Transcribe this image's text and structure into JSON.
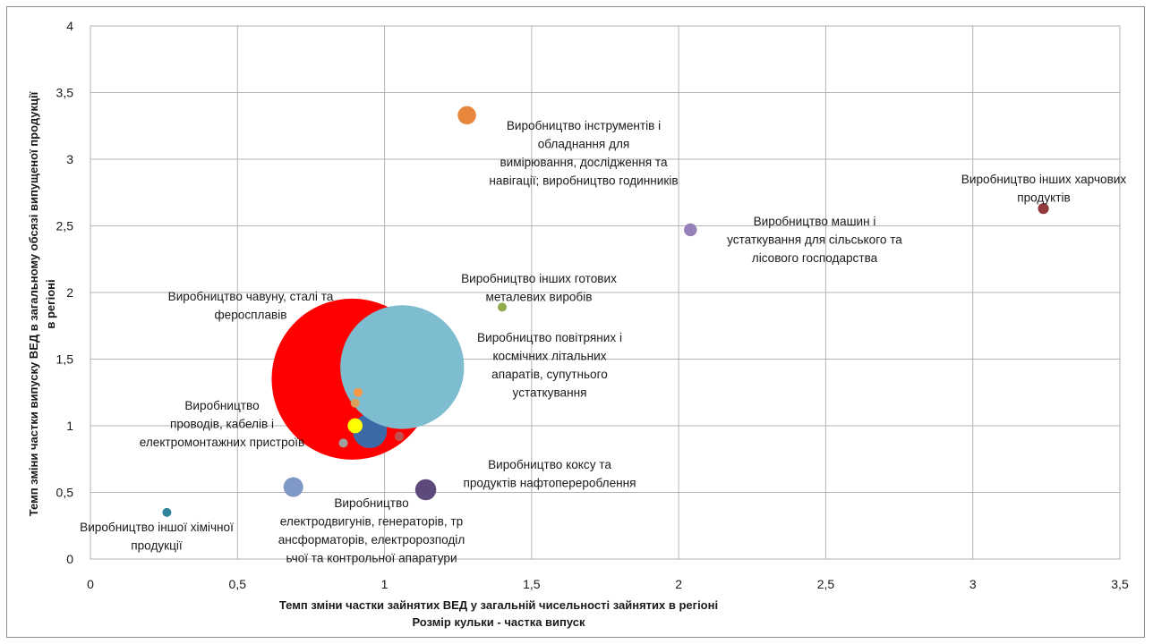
{
  "chart_data": {
    "type": "scatter",
    "subtype": "bubble",
    "xlabel": "Темп зміни частки зайнятих  ВЕД у загальній чисельності зайнятих в регіоні",
    "xlabel2": "Розмір кульки - частка випуск",
    "ylabel_line1": "Темп зміни частки випуску ВЕД в загальному обсязі випущеної продукції",
    "ylabel_line2": "в регіоні",
    "xlim": [
      0,
      3.5
    ],
    "ylim": [
      0,
      4
    ],
    "x_ticks": [
      0,
      0.5,
      1,
      1.5,
      2,
      2.5,
      3,
      3.5
    ],
    "x_tick_labels": [
      "0",
      "0,5",
      "1",
      "1,5",
      "2",
      "2,5",
      "3",
      "3,5"
    ],
    "y_ticks": [
      0,
      0.5,
      1,
      1.5,
      2,
      2.5,
      3,
      3.5,
      4
    ],
    "y_tick_labels": [
      "0",
      "0,5",
      "1",
      "1,5",
      "2",
      "2,5",
      "3",
      "3,5",
      "4"
    ],
    "grid": true,
    "points": [
      {
        "x": 0.89,
        "y": 1.35,
        "size": 100,
        "color": "#ff0000"
      },
      {
        "x": 0.95,
        "y": 0.96,
        "size": 4.5,
        "color": "#3c6aa8"
      },
      {
        "x": 1.06,
        "y": 1.44,
        "size": 59,
        "color": "#7ebcd0"
      },
      {
        "x": 1.28,
        "y": 3.33,
        "size": 1.3,
        "color": "#e8873c"
      },
      {
        "x": 2.04,
        "y": 2.47,
        "size": 0.64,
        "color": "#9580b8"
      },
      {
        "x": 3.24,
        "y": 2.63,
        "size": 0.46,
        "color": "#953a3c"
      },
      {
        "x": 1.4,
        "y": 1.89,
        "size": 0.21,
        "color": "#92aa4e"
      },
      {
        "x": 0.9,
        "y": 1.0,
        "size": 0.86,
        "color": "#ffff00"
      },
      {
        "x": 0.69,
        "y": 0.54,
        "size": 1.5,
        "color": "#7f98c6"
      },
      {
        "x": 1.14,
        "y": 0.52,
        "size": 1.7,
        "color": "#5d4a7a"
      },
      {
        "x": 0.26,
        "y": 0.35,
        "size": 0.1,
        "color": "#31849b"
      },
      {
        "x": 1.05,
        "y": 0.92,
        "size": 0.34,
        "color": "#c0504d"
      },
      {
        "x": 0.91,
        "y": 1.25,
        "size": 0.05,
        "color": "#f79646"
      },
      {
        "x": 0.9,
        "y": 1.17,
        "size": 0.08,
        "color": "#d9a05b"
      },
      {
        "x": 0.86,
        "y": 0.87,
        "size": 0.05,
        "color": "#a0a0a0"
      }
    ],
    "annotations": [
      {
        "lines": [
          "Виробництво інструментів і",
          "обладнання для",
          "вимірювання, дослідження та",
          "навігації; виробництво годинників"
        ]
      },
      {
        "lines": [
          "Виробництво інших харчових",
          "продуктів"
        ]
      },
      {
        "lines": [
          "Виробництво машин і",
          "устаткування для сільського та",
          "лісового господарства"
        ]
      },
      {
        "lines": [
          "Виробництво інших готових",
          "металевих виробів"
        ]
      },
      {
        "lines": [
          "Виробництво чавуну, сталі та",
          "феросплавів"
        ]
      },
      {
        "lines": [
          "Виробництво повітряних і",
          "космічних літальних",
          "апаратів, супутнього",
          "устаткування"
        ]
      },
      {
        "lines": [
          "Виробництво",
          "проводів, кабелів і",
          "електромонтажних пристроїв"
        ]
      },
      {
        "lines": [
          "Виробництво коксу та",
          "продуктів нафтоперероблення"
        ]
      },
      {
        "lines": [
          "Виробництво",
          "електродвигунів, генераторів, тр",
          "ансформаторів, електророзподіл",
          "ьчої та контрольної апаратури"
        ]
      },
      {
        "lines": [
          "Виробництво іншої хімічної",
          "продукції"
        ]
      }
    ]
  }
}
